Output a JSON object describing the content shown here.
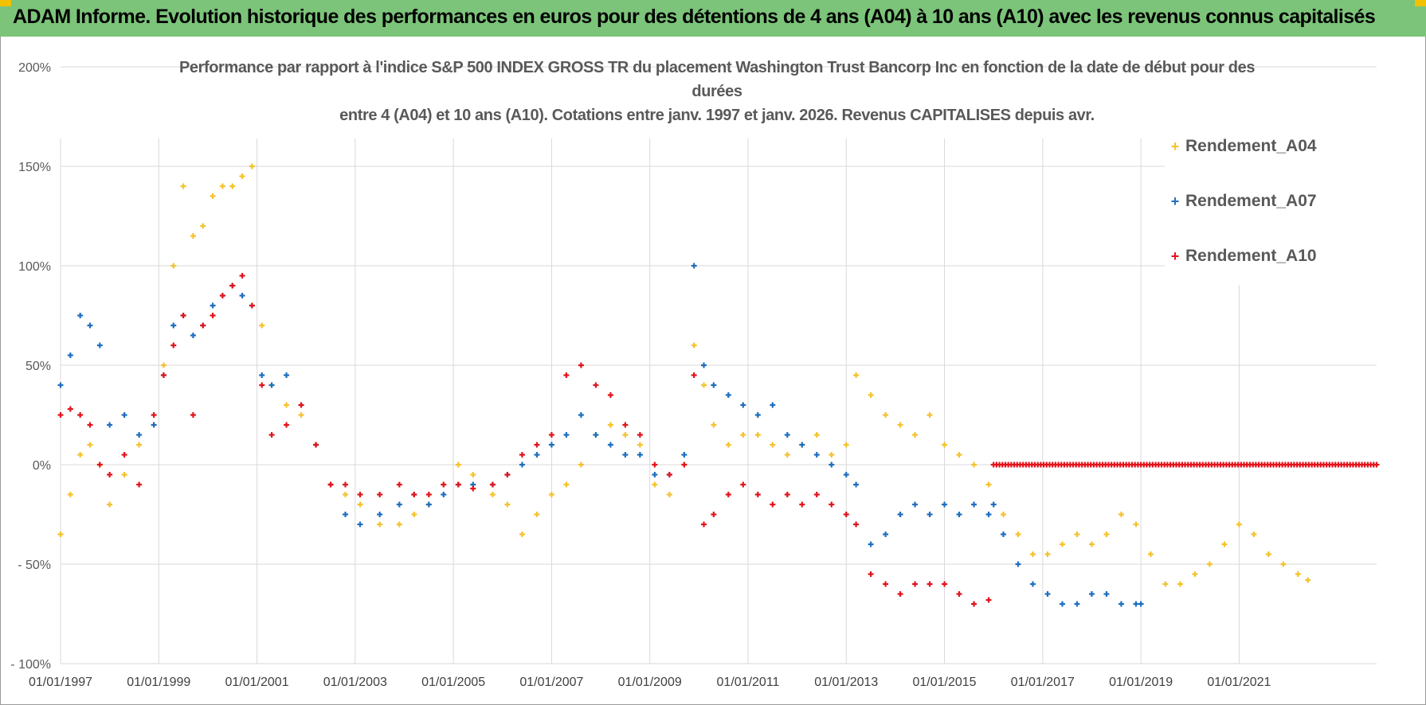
{
  "banner": {
    "title": "ADAM Informe. Evolution historique des performances en euros pour des détentions de 4 ans (A04) à 10 ans (A10) avec les revenus connus capitalisés"
  },
  "chart_data": {
    "type": "scatter",
    "title_lines": [
      "Performance par rapport à l'indice S&P 500 INDEX GROSS TR  du placement Washington Trust Bancorp Inc en fonction de la date de début pour des",
      "durées",
      "entre 4 (A04) et 10 ans (A10).  Cotations entre janv. 1997 et janv. 2026. Revenus CAPITALISES depuis avr."
    ],
    "xlabel": "",
    "ylabel": "",
    "xlim": [
      1997.0,
      2023.8
    ],
    "ylim": [
      -100,
      200
    ],
    "y_ticks": [
      {
        "value": 200,
        "label": "200%"
      },
      {
        "value": 150,
        "label": "150%"
      },
      {
        "value": 100,
        "label": "100%"
      },
      {
        "value": 50,
        "label": "50%"
      },
      {
        "value": 0,
        "label": "0%"
      },
      {
        "value": -50,
        "label": "- 50%"
      },
      {
        "value": -100,
        "label": "- 100%"
      }
    ],
    "x_ticks": [
      {
        "value": 1997,
        "label": "01/01/1997"
      },
      {
        "value": 1999,
        "label": "01/01/1999"
      },
      {
        "value": 2001,
        "label": "01/01/2001"
      },
      {
        "value": 2003,
        "label": "01/01/2003"
      },
      {
        "value": 2005,
        "label": "01/01/2005"
      },
      {
        "value": 2007,
        "label": "01/01/2007"
      },
      {
        "value": 2009,
        "label": "01/01/2009"
      },
      {
        "value": 2011,
        "label": "01/01/2011"
      },
      {
        "value": 2013,
        "label": "01/01/2013"
      },
      {
        "value": 2015,
        "label": "01/01/2015"
      },
      {
        "value": 2017,
        "label": "01/01/2017"
      },
      {
        "value": 2019,
        "label": "01/01/2019"
      },
      {
        "value": 2021,
        "label": "01/01/2021"
      }
    ],
    "grid": true,
    "legend_position": "right",
    "series": [
      {
        "name": "Rendement_A04",
        "color": "#f5c22b",
        "x": [
          1997.0,
          1997.2,
          1997.4,
          1997.6,
          1997.8,
          1998.0,
          1998.3,
          1998.6,
          1998.9,
          1999.1,
          1999.3,
          1999.5,
          1999.7,
          1999.9,
          2000.1,
          2000.3,
          2000.5,
          2000.7,
          2000.9,
          2001.1,
          2001.3,
          2001.6,
          2001.9,
          2002.2,
          2002.5,
          2002.8,
          2003.1,
          2003.5,
          2003.9,
          2004.2,
          2004.5,
          2004.8,
          2005.1,
          2005.4,
          2005.8,
          2006.1,
          2006.4,
          2006.7,
          2007.0,
          2007.3,
          2007.6,
          2007.9,
          2008.2,
          2008.5,
          2008.8,
          2009.1,
          2009.4,
          2009.7,
          2009.9,
          2010.1,
          2010.3,
          2010.6,
          2010.9,
          2011.2,
          2011.5,
          2011.8,
          2012.1,
          2012.4,
          2012.7,
          2013.0,
          2013.2,
          2013.5,
          2013.8,
          2014.1,
          2014.4,
          2014.7,
          2015.0,
          2015.3,
          2015.6,
          2015.9,
          2016.2,
          2016.5,
          2016.8,
          2017.1,
          2017.4,
          2017.7,
          2018.0,
          2018.3,
          2018.6,
          2018.9,
          2019.2,
          2019.5,
          2019.8,
          2020.1,
          2020.4,
          2020.7,
          2021.0,
          2021.3,
          2021.6,
          2021.9,
          2022.2,
          2022.4
        ],
        "y": [
          -35,
          -15,
          5,
          10,
          0,
          -20,
          -5,
          10,
          20,
          50,
          100,
          140,
          115,
          120,
          135,
          140,
          140,
          145,
          150,
          70,
          40,
          30,
          25,
          10,
          -10,
          -15,
          -20,
          -30,
          -30,
          -25,
          -20,
          -10,
          0,
          -5,
          -15,
          -20,
          -35,
          -25,
          -15,
          -10,
          0,
          15,
          20,
          15,
          10,
          -10,
          -15,
          0,
          60,
          40,
          20,
          10,
          15,
          15,
          10,
          5,
          10,
          15,
          5,
          10,
          45,
          35,
          25,
          20,
          15,
          25,
          10,
          5,
          0,
          -10,
          -25,
          -35,
          -45,
          -45,
          -40,
          -35,
          -40,
          -35,
          -25,
          -30,
          -45,
          -60,
          -60,
          -55,
          -50,
          -40,
          -30,
          -35,
          -45,
          -50,
          -55,
          -58
        ]
      },
      {
        "name": "Rendement_A07",
        "color": "#1f6fbf",
        "x": [
          1997.0,
          1997.2,
          1997.4,
          1997.6,
          1997.8,
          1998.0,
          1998.3,
          1998.6,
          1998.9,
          1999.1,
          1999.3,
          1999.5,
          1999.7,
          1999.9,
          2000.1,
          2000.3,
          2000.5,
          2000.7,
          2000.9,
          2001.1,
          2001.3,
          2001.6,
          2001.9,
          2002.2,
          2002.5,
          2002.8,
          2003.1,
          2003.5,
          2003.9,
          2004.2,
          2004.5,
          2004.8,
          2005.1,
          2005.4,
          2005.8,
          2006.1,
          2006.4,
          2006.7,
          2007.0,
          2007.3,
          2007.6,
          2007.9,
          2008.2,
          2008.5,
          2008.8,
          2009.1,
          2009.4,
          2009.7,
          2009.9,
          2010.1,
          2010.3,
          2010.6,
          2010.9,
          2011.2,
          2011.5,
          2011.8,
          2012.1,
          2012.4,
          2012.7,
          2013.0,
          2013.2,
          2013.5,
          2013.8,
          2014.1,
          2014.4,
          2014.7,
          2015.0,
          2015.3,
          2015.6,
          2015.9,
          2016.0,
          2016.2,
          2016.5,
          2016.8,
          2017.1,
          2017.4,
          2017.7,
          2018.0,
          2018.3,
          2018.6,
          2018.9,
          2019.0
        ],
        "y": [
          40,
          55,
          75,
          70,
          60,
          20,
          25,
          15,
          20,
          45,
          70,
          75,
          65,
          70,
          80,
          85,
          90,
          85,
          80,
          45,
          40,
          45,
          30,
          10,
          -10,
          -25,
          -30,
          -25,
          -20,
          -15,
          -20,
          -15,
          -10,
          -10,
          -10,
          -5,
          0,
          5,
          10,
          15,
          25,
          15,
          10,
          5,
          5,
          -5,
          -5,
          5,
          100,
          50,
          40,
          35,
          30,
          25,
          30,
          15,
          10,
          5,
          0,
          -5,
          -10,
          -40,
          -35,
          -25,
          -20,
          -25,
          -20,
          -25,
          -20,
          -25,
          -20,
          -35,
          -50,
          -60,
          -65,
          -70,
          -70,
          -65,
          -65,
          -70,
          -70,
          -70
        ]
      },
      {
        "name": "Rendement_A10",
        "color": "#e3141c",
        "x": [
          1997.0,
          1997.2,
          1997.4,
          1997.6,
          1997.8,
          1998.0,
          1998.3,
          1998.6,
          1998.9,
          1999.1,
          1999.3,
          1999.5,
          1999.7,
          1999.9,
          2000.1,
          2000.3,
          2000.5,
          2000.7,
          2000.9,
          2001.1,
          2001.3,
          2001.6,
          2001.9,
          2002.2,
          2002.5,
          2002.8,
          2003.1,
          2003.5,
          2003.9,
          2004.2,
          2004.5,
          2004.8,
          2005.1,
          2005.4,
          2005.8,
          2006.1,
          2006.4,
          2006.7,
          2007.0,
          2007.3,
          2007.6,
          2007.9,
          2008.2,
          2008.5,
          2008.8,
          2009.1,
          2009.4,
          2009.7,
          2009.9,
          2010.1,
          2010.3,
          2010.6,
          2010.9,
          2011.2,
          2011.5,
          2011.8,
          2012.1,
          2012.4,
          2012.7,
          2013.0,
          2013.2,
          2013.5,
          2013.8,
          2014.1,
          2014.4,
          2014.7,
          2015.0,
          2015.3,
          2015.6,
          2015.9
        ],
        "y": [
          25,
          28,
          25,
          20,
          0,
          -5,
          5,
          -10,
          25,
          45,
          60,
          75,
          25,
          70,
          75,
          85,
          90,
          95,
          80,
          40,
          15,
          20,
          30,
          10,
          -10,
          -10,
          -15,
          -15,
          -10,
          -15,
          -15,
          -10,
          -10,
          -12,
          -10,
          -5,
          5,
          10,
          15,
          45,
          50,
          40,
          35,
          20,
          15,
          0,
          -5,
          0,
          45,
          -30,
          -25,
          -15,
          -10,
          -15,
          -20,
          -15,
          -20,
          -15,
          -20,
          -25,
          -30,
          -55,
          -60,
          -65,
          -60,
          -60,
          -60,
          -65,
          -70,
          -68
        ]
      },
      {
        "name": "Rendement_A10_zero_segment",
        "color": "#e3141c",
        "x_start": 2016.0,
        "x_end": 2023.8,
        "y": 0
      }
    ]
  },
  "legend": [
    {
      "label": "Rendement_A04",
      "color": "#f5c22b"
    },
    {
      "label": "Rendement_A07",
      "color": "#1f6fbf"
    },
    {
      "label": "Rendement_A10",
      "color": "#e3141c"
    }
  ]
}
